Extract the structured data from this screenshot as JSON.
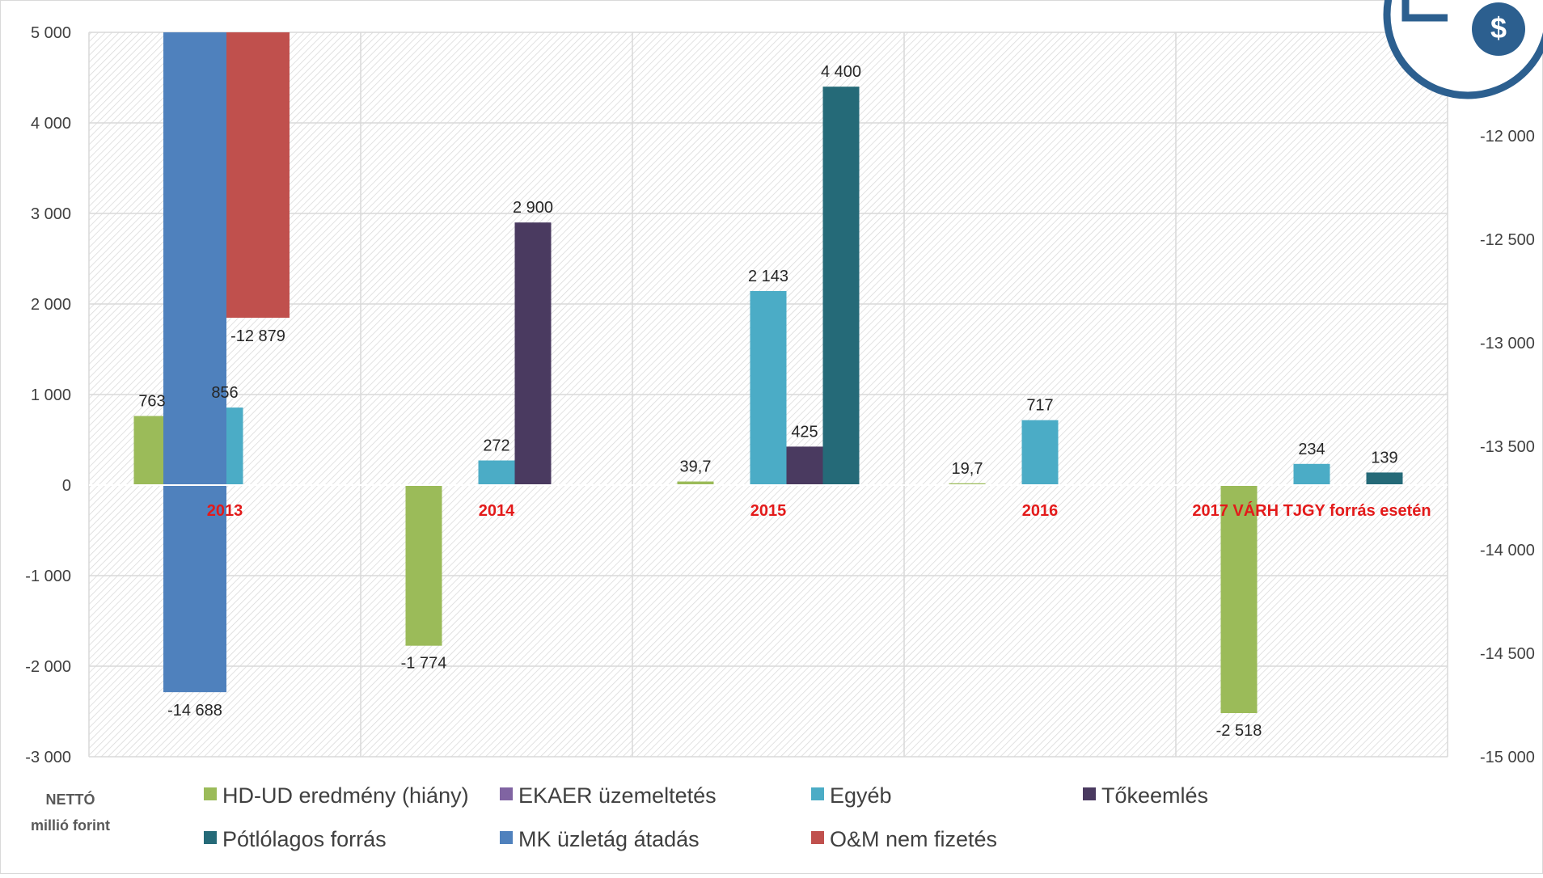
{
  "chart_data": {
    "type": "bar",
    "categories": [
      "2013",
      "2014",
      "2015",
      "2016",
      "2017 VÁRH TJGY forrás esetén"
    ],
    "unit_label": [
      "NETTÓ",
      "millió forint"
    ],
    "ylim": [
      -3000,
      5000
    ],
    "yticks": [
      -3000,
      -2000,
      -1000,
      0,
      1000,
      2000,
      3000,
      4000,
      5000
    ],
    "ytick_labels": [
      "-3 000",
      "-2 000",
      "-1 000",
      "0",
      "1 000",
      "2 000",
      "3 000",
      "4 000",
      "5 000"
    ],
    "y2lim": [
      -15000,
      -11500
    ],
    "y2ticks": [
      -15000,
      -14500,
      -14000,
      -13500,
      -13000,
      -12500,
      -12000
    ],
    "y2tick_labels": [
      "-15 000",
      "-14 500",
      "-14 000",
      "-13 500",
      "-13 000",
      "-12 500",
      "-12 000"
    ],
    "grid": true,
    "legend_position": "bottom",
    "series": [
      {
        "name": "HD-UD eredmény (hiány)",
        "color": "#9bbb59",
        "axis": "primary",
        "values": [
          763,
          -1774,
          39.7,
          19.7,
          -2518
        ],
        "labels": [
          "763",
          "-1 774",
          "39,7",
          "19,7",
          "-2 518"
        ]
      },
      {
        "name": "EKAER üzemeltetés",
        "color": "#8064a2",
        "axis": "primary",
        "values": [
          null,
          null,
          null,
          null,
          null
        ],
        "labels": [
          null,
          null,
          null,
          null,
          null
        ]
      },
      {
        "name": "Egyéb",
        "color": "#4bacc6",
        "axis": "primary",
        "values": [
          856,
          272,
          2143,
          717,
          234
        ],
        "labels": [
          "856",
          "272",
          "2 143",
          "717",
          "234"
        ]
      },
      {
        "name": "Tőkeemlés",
        "color": "#4a3a60",
        "axis": "primary",
        "values": [
          null,
          2900,
          425,
          null,
          null
        ],
        "labels": [
          null,
          "2 900",
          "425",
          null,
          null
        ]
      },
      {
        "name": "Pótlólagos forrás",
        "color": "#256a78",
        "axis": "primary",
        "values": [
          null,
          null,
          4400,
          null,
          139
        ],
        "labels": [
          null,
          null,
          "4 400",
          null,
          "139"
        ]
      },
      {
        "name": "MK üzletág átadás",
        "color": "#4f81bd",
        "axis": "secondary",
        "values": [
          -14688,
          null,
          null,
          null,
          null
        ],
        "labels": [
          "-14 688",
          null,
          null,
          null,
          null
        ]
      },
      {
        "name": "O&M nem fizetés",
        "color": "#c0504d",
        "axis": "secondary",
        "values": [
          -12879,
          null,
          null,
          null,
          null
        ],
        "labels": [
          "-12 879",
          null,
          null,
          null,
          null
        ]
      }
    ]
  }
}
